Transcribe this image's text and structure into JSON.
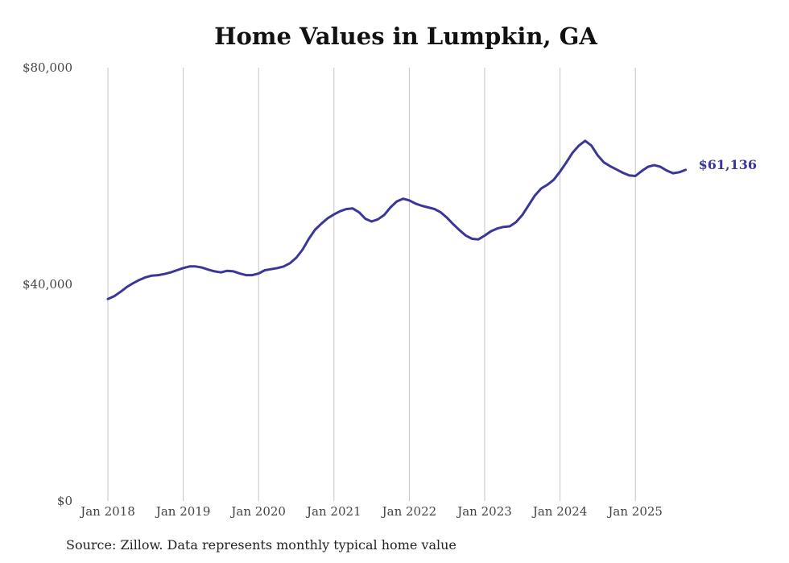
{
  "chart_data": {
    "type": "line",
    "title": "Home Values in Lumpkin, GA",
    "source": "Source: Zillow. Data represents monthly typical home value",
    "xlabel": "",
    "ylabel": "",
    "ylim": [
      0,
      80000
    ],
    "grid": "vertical lines at each January",
    "y_ticks": [
      {
        "value": 0,
        "label": "$0"
      },
      {
        "value": 40000,
        "label": "$40,000"
      },
      {
        "value": 80000,
        "label": "$80,000"
      }
    ],
    "x_ticks": [
      {
        "value": 0,
        "label": "Jan 2018"
      },
      {
        "value": 12,
        "label": "Jan 2019"
      },
      {
        "value": 24,
        "label": "Jan 2020"
      },
      {
        "value": 36,
        "label": "Jan 2021"
      },
      {
        "value": 48,
        "label": "Jan 2022"
      },
      {
        "value": 60,
        "label": "Jan 2023"
      },
      {
        "value": 72,
        "label": "Jan 2024"
      },
      {
        "value": 84,
        "label": "Jan 2025"
      }
    ],
    "series": [
      {
        "name": "Typical home value",
        "color": "#3b3699",
        "x_unit": "months since Jan 2018",
        "values": [
          37300,
          37800,
          38600,
          39500,
          40200,
          40800,
          41300,
          41600,
          41700,
          41900,
          42200,
          42600,
          43000,
          43300,
          43300,
          43100,
          42700,
          42400,
          42200,
          42500,
          42400,
          42000,
          41700,
          41700,
          42000,
          42600,
          42800,
          43000,
          43300,
          43900,
          44900,
          46400,
          48400,
          50100,
          51200,
          52200,
          52900,
          53500,
          53900,
          54000,
          53300,
          52100,
          51600,
          52000,
          52800,
          54200,
          55300,
          55800,
          55500,
          54900,
          54500,
          54200,
          53900,
          53300,
          52300,
          51100,
          50000,
          49000,
          48400,
          48300,
          49000,
          49800,
          50300,
          50600,
          50700,
          51500,
          52800,
          54600,
          56400,
          57700,
          58400,
          59300,
          60800,
          62500,
          64300,
          65600,
          66500,
          65600,
          63800,
          62500,
          61800,
          61200,
          60600,
          60100,
          60000,
          60900,
          61700,
          62000,
          61700,
          61000,
          60500,
          60700,
          61136
        ],
        "end_label": "$61,136"
      }
    ]
  }
}
